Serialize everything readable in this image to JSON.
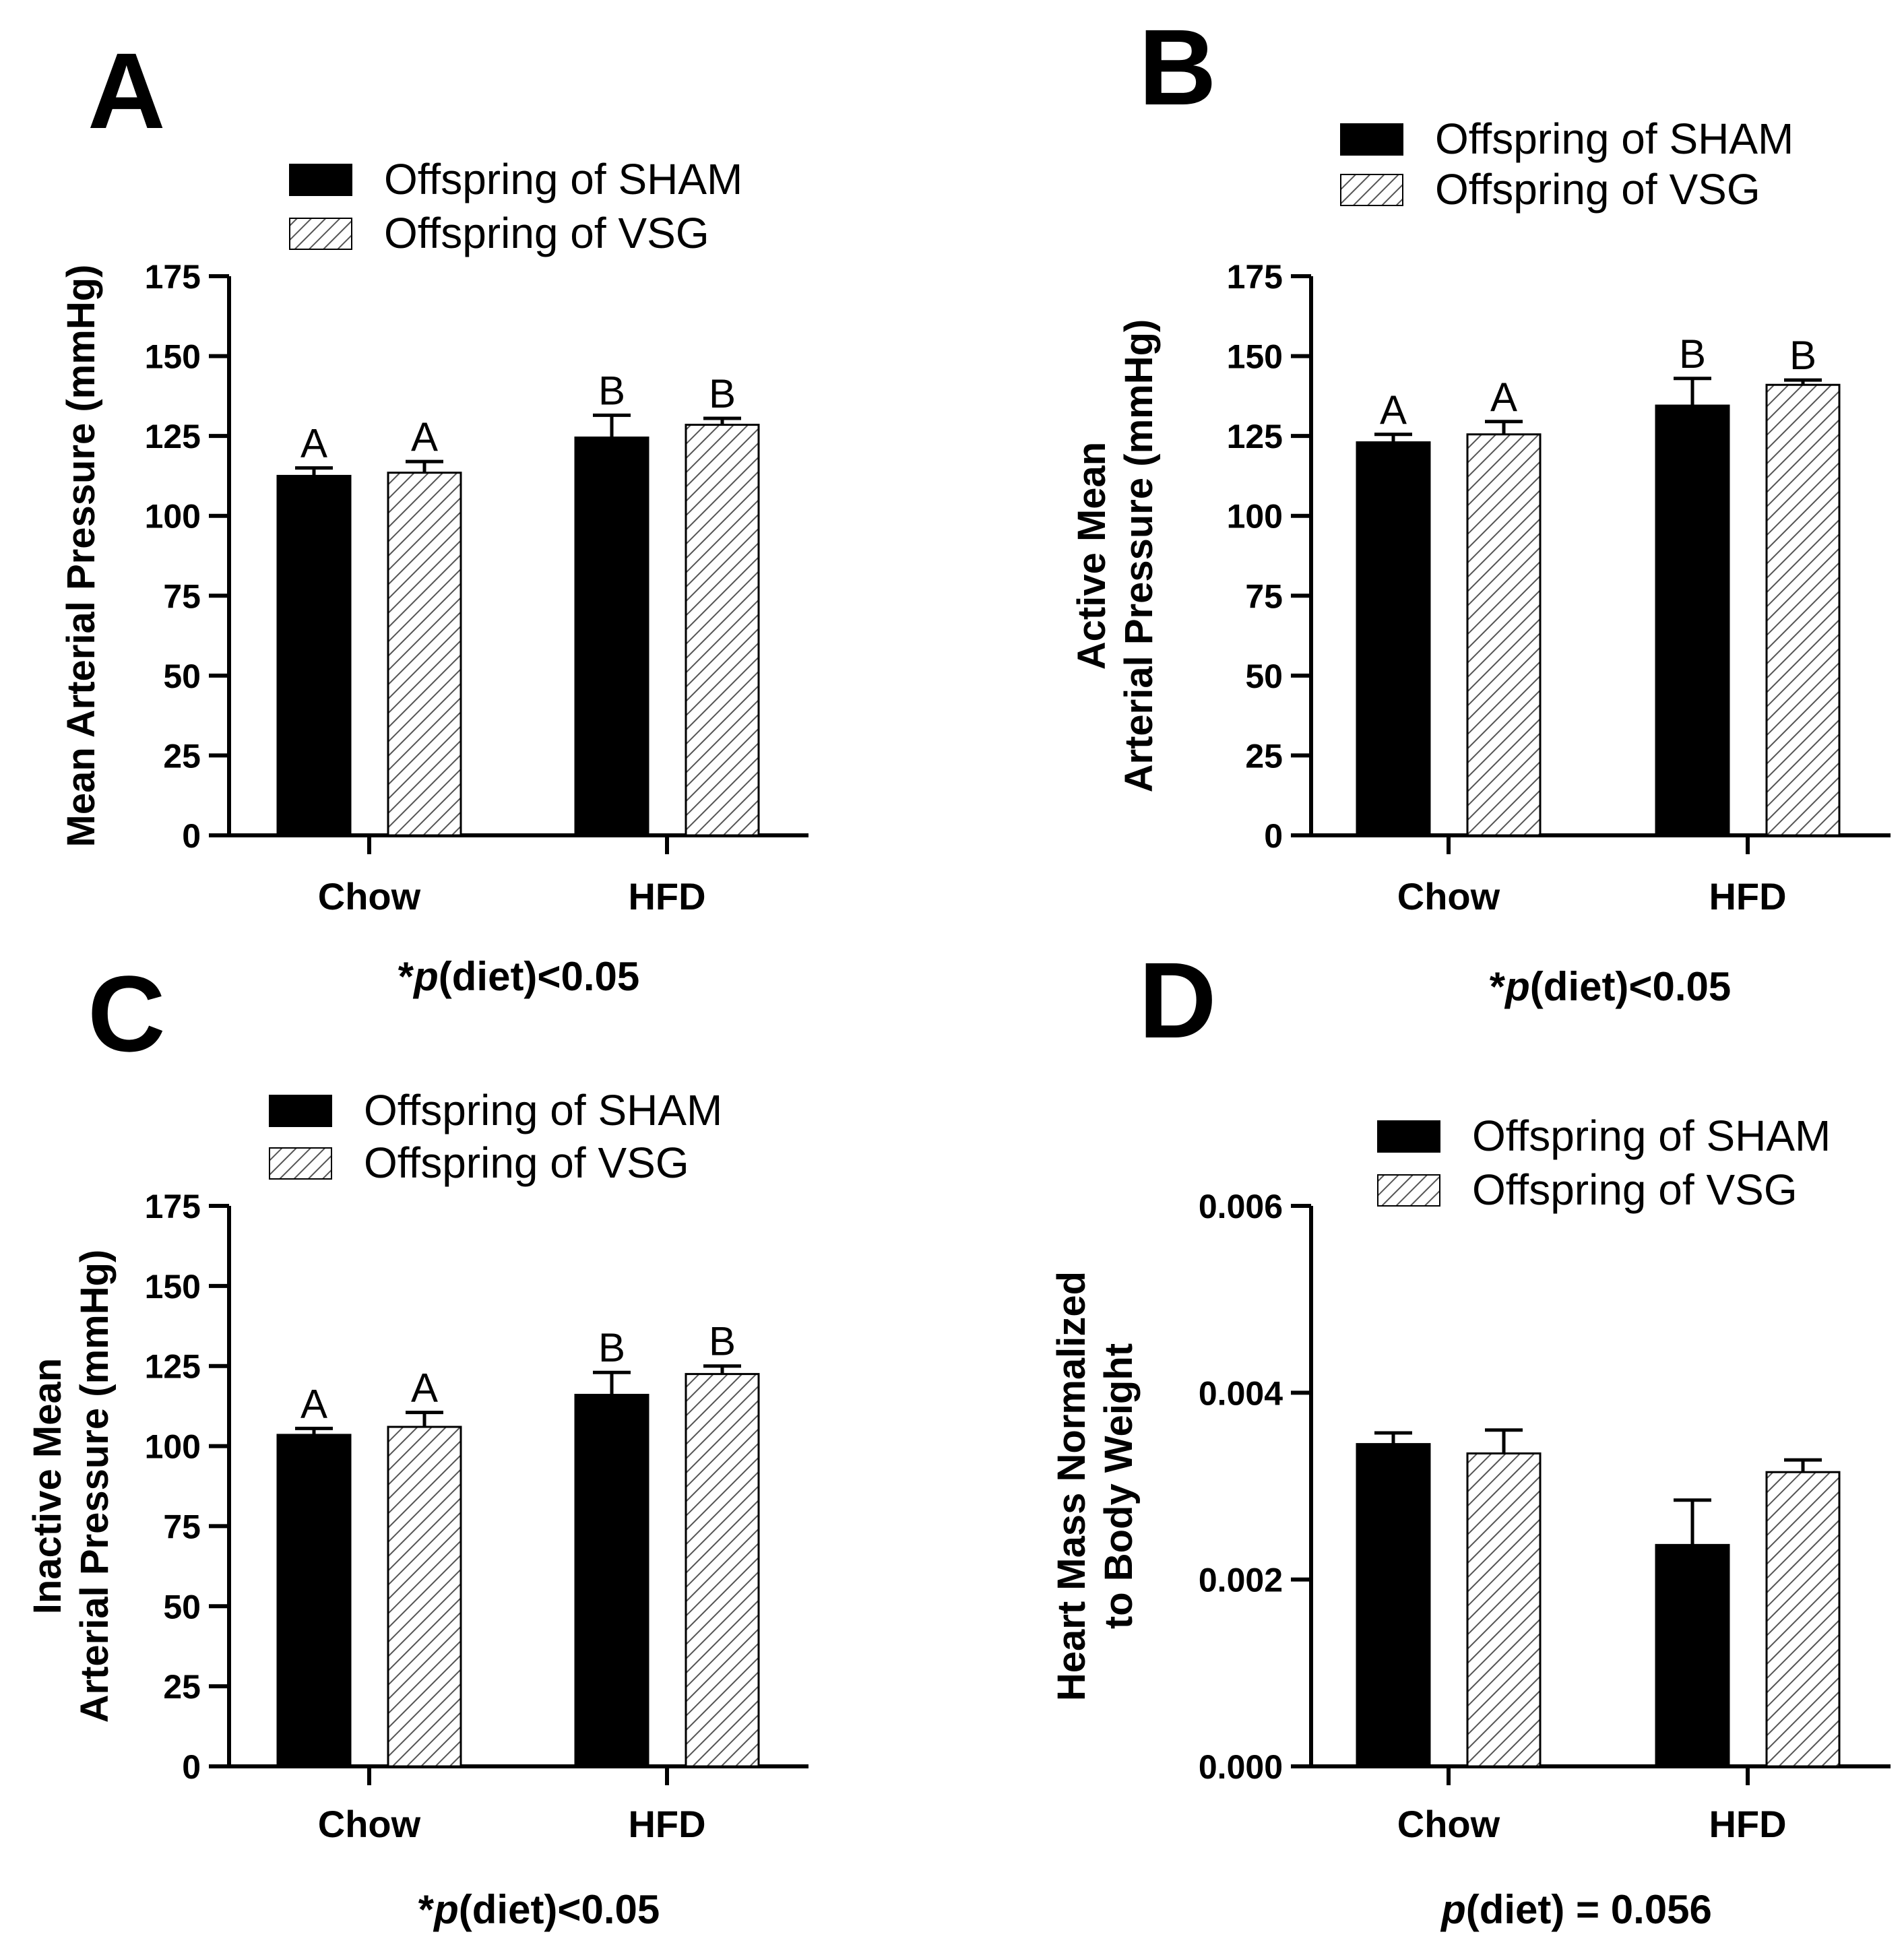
{
  "colors": {
    "sham_fill": "#000000",
    "vsg_fill": "#ffffff",
    "hatch_stroke": "#555555",
    "axis": "#000000"
  },
  "chart_data": [
    {
      "type": "bar",
      "panel": "A",
      "ylabel": "Mean Arterial Pressure (mmHg)",
      "ylim": [
        0,
        175
      ],
      "yticks": [
        "0",
        "25",
        "50",
        "75",
        "100",
        "125",
        "150",
        "175"
      ],
      "categories": [
        "Chow",
        "HFD"
      ],
      "series": [
        {
          "name": "Offspring of SHAM",
          "values": [
            112.5,
            124.5
          ],
          "errors": [
            2.5,
            7
          ],
          "sig": [
            "A",
            "B"
          ]
        },
        {
          "name": "Offspring of VSG",
          "values": [
            113.5,
            128.5
          ],
          "errors": [
            3.5,
            2
          ],
          "sig": [
            "A",
            "B"
          ]
        }
      ],
      "note": "*p(diet)<0.05"
    },
    {
      "type": "bar",
      "panel": "B",
      "ylabel": [
        "Active Mean",
        "Arterial Pressure (mmHg)"
      ],
      "ylim": [
        0,
        175
      ],
      "yticks": [
        "0",
        "25",
        "50",
        "75",
        "100",
        "125",
        "150",
        "175"
      ],
      "categories": [
        "Chow",
        "HFD"
      ],
      "series": [
        {
          "name": "Offspring of SHAM",
          "values": [
            123,
            134.5
          ],
          "errors": [
            2.5,
            8.5
          ],
          "sig": [
            "A",
            "B"
          ]
        },
        {
          "name": "Offspring of VSG",
          "values": [
            125.5,
            141
          ],
          "errors": [
            4,
            1.5
          ],
          "sig": [
            "A",
            "B"
          ]
        }
      ],
      "note": "*p(diet)<0.05"
    },
    {
      "type": "bar",
      "panel": "C",
      "ylabel": [
        "Inactive Mean",
        "Arterial Pressure (mmHg)"
      ],
      "ylim": [
        0,
        175
      ],
      "yticks": [
        "0",
        "25",
        "50",
        "75",
        "100",
        "125",
        "150",
        "175"
      ],
      "categories": [
        "Chow",
        "HFD"
      ],
      "series": [
        {
          "name": "Offspring of SHAM",
          "values": [
            103.5,
            116
          ],
          "errors": [
            2,
            7
          ],
          "sig": [
            "A",
            "B"
          ]
        },
        {
          "name": "Offspring of VSG",
          "values": [
            106,
            122.5
          ],
          "errors": [
            4.5,
            2.5
          ],
          "sig": [
            "A",
            "B"
          ]
        }
      ],
      "note": "*p(diet)<0.05"
    },
    {
      "type": "bar",
      "panel": "D",
      "ylabel": [
        "Heart Mass Normalized",
        "to Body Weight"
      ],
      "ylim": [
        0,
        0.006
      ],
      "yticks": [
        "0.000",
        "0.002",
        "0.004",
        "0.006"
      ],
      "categories": [
        "Chow",
        "HFD"
      ],
      "series": [
        {
          "name": "Offspring of SHAM",
          "values": [
            0.00345,
            0.00237
          ],
          "errors": [
            0.00012,
            0.00048
          ],
          "sig": [
            "",
            ""
          ]
        },
        {
          "name": "Offspring of VSG",
          "values": [
            0.00335,
            0.00315
          ],
          "errors": [
            0.00025,
            0.00013
          ],
          "sig": [
            "",
            ""
          ]
        }
      ],
      "note": "p(diet) = 0.056"
    }
  ]
}
